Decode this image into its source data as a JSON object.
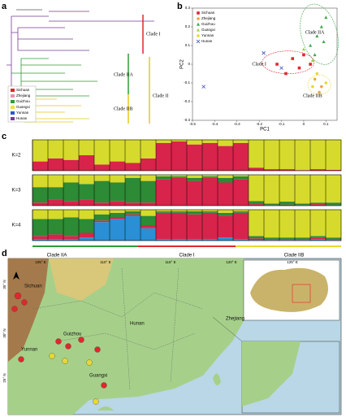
{
  "panel_labels": [
    "a",
    "b",
    "c",
    "d"
  ],
  "tree": {
    "clades": [
      "Clade I",
      "Clade IIA",
      "Clade IIB",
      "Clade II"
    ],
    "legend": [
      {
        "name": "Sichuan",
        "color": "#e3262e"
      },
      {
        "name": "Zhejiang",
        "color": "#e98fb0"
      },
      {
        "name": "Guizhou",
        "color": "#2f9b3a"
      },
      {
        "name": "Guangxi",
        "color": "#e8e24a"
      },
      {
        "name": "Yunnan",
        "color": "#3057c8"
      },
      {
        "name": "Hunan",
        "color": "#7a3b96"
      }
    ]
  },
  "map": {
    "clades": [
      "Clade IIA",
      "Clade I",
      "Clade IIB"
    ],
    "longitudes": [
      "105° E",
      "110° E",
      "115° E",
      "120° E",
      "125° E"
    ],
    "latitudes": [
      "35° N",
      "30° N",
      "25° N"
    ],
    "regions": [
      "Sichuan",
      "Guizhou",
      "Hunan",
      "Yunnan",
      "Guangxi",
      "Zhejiang"
    ]
  },
  "chart_data": [
    {
      "type": "scatter",
      "x_label": "PC1",
      "y_label": "PC2",
      "xlim": [
        -0.5,
        0.15
      ],
      "ylim": [
        -0.3,
        0.3
      ],
      "xticks": [
        -0.5,
        -0.4,
        -0.3,
        -0.2,
        -0.1,
        0,
        0.1
      ],
      "yticks": [
        -0.3,
        -0.2,
        -0.1,
        0,
        0.1,
        0.2,
        0.3
      ],
      "annotations": [
        "Clade IIA",
        "Clade I",
        "Clade IIB"
      ],
      "series": [
        {
          "name": "Sichuan",
          "color": "#e3262e",
          "marker": "square",
          "x": [
            -0.12,
            -0.05,
            -0.02,
            0.0,
            0.03,
            -0.08
          ],
          "y": [
            0.0,
            0.03,
            -0.02,
            0.05,
            0.0,
            -0.05
          ]
        },
        {
          "name": "Zhejiang",
          "color": "#f0a640",
          "marker": "circle",
          "x": [
            0.05,
            0.08,
            0.07
          ],
          "y": [
            -0.08,
            -0.12,
            -0.15
          ]
        },
        {
          "name": "Guizhou",
          "color": "#3aa548",
          "marker": "triangle",
          "x": [
            0.03,
            0.06,
            0.08,
            0.1,
            0.05,
            0.09
          ],
          "y": [
            0.1,
            0.15,
            0.2,
            0.25,
            0.05,
            0.12
          ]
        },
        {
          "name": "Guangxi",
          "color": "#9ad04a",
          "marker": "triangle",
          "x": [
            0.0,
            0.04
          ],
          "y": [
            0.08,
            0.02
          ]
        },
        {
          "name": "Yunnan",
          "color": "#e8d830",
          "marker": "circle",
          "x": [
            0.06,
            0.1,
            0.04
          ],
          "y": [
            -0.05,
            -0.1,
            -0.12
          ]
        },
        {
          "name": "Hunan",
          "color": "#3a4fc0",
          "marker": "cross",
          "x": [
            -0.45,
            -0.18,
            -0.1
          ],
          "y": [
            -0.12,
            0.06,
            -0.02
          ]
        }
      ]
    },
    {
      "type": "stacked-bar",
      "title": "K=2",
      "ylim": [
        0,
        1
      ],
      "categories": [
        null,
        null,
        null,
        null,
        null,
        null,
        null,
        null,
        null,
        null,
        null,
        null,
        null,
        null,
        null,
        null,
        null,
        null,
        null,
        null
      ],
      "series": [
        {
          "color": "#d8244a",
          "values": [
            0.3,
            0.4,
            0.35,
            0.5,
            0.2,
            0.3,
            0.25,
            0.4,
            0.9,
            0.95,
            0.85,
            0.9,
            0.8,
            0.9,
            0.1,
            0.05,
            0.05,
            0.02,
            0.05,
            0.03
          ]
        },
        {
          "color": "#d6da2c",
          "values": [
            0.7,
            0.6,
            0.65,
            0.5,
            0.8,
            0.7,
            0.75,
            0.6,
            0.1,
            0.05,
            0.15,
            0.1,
            0.2,
            0.1,
            0.9,
            0.95,
            0.95,
            0.98,
            0.95,
            0.97
          ]
        }
      ]
    },
    {
      "type": "stacked-bar",
      "title": "K=3",
      "ylim": [
        0,
        1
      ],
      "categories": [
        null,
        null,
        null,
        null,
        null,
        null,
        null,
        null,
        null,
        null,
        null,
        null,
        null,
        null,
        null,
        null,
        null,
        null,
        null,
        null
      ],
      "series": [
        {
          "color": "#d8244a",
          "values": [
            0.1,
            0.2,
            0.15,
            0.2,
            0.1,
            0.15,
            0.1,
            0.1,
            0.85,
            0.9,
            0.8,
            0.9,
            0.75,
            0.85,
            0.05,
            0.02,
            0.03,
            0.02,
            0.05,
            0.02
          ]
        },
        {
          "color": "#2d8a35",
          "values": [
            0.5,
            0.4,
            0.6,
            0.5,
            0.7,
            0.6,
            0.8,
            0.7,
            0.1,
            0.05,
            0.1,
            0.05,
            0.15,
            0.1,
            0.1,
            0.05,
            0.1,
            0.05,
            0.05,
            0.08
          ]
        },
        {
          "color": "#d6da2c",
          "values": [
            0.4,
            0.4,
            0.25,
            0.3,
            0.2,
            0.25,
            0.1,
            0.2,
            0.05,
            0.05,
            0.1,
            0.05,
            0.1,
            0.05,
            0.85,
            0.93,
            0.87,
            0.93,
            0.9,
            0.9
          ]
        }
      ]
    },
    {
      "type": "stacked-bar",
      "title": "K=4",
      "ylim": [
        0,
        1
      ],
      "categories": [
        null,
        null,
        null,
        null,
        null,
        null,
        null,
        null,
        null,
        null,
        null,
        null,
        null,
        null,
        null,
        null,
        null,
        null,
        null,
        null
      ],
      "series": [
        {
          "color": "#2a8fd4",
          "values": [
            0.05,
            0.05,
            0.05,
            0.1,
            0.6,
            0.7,
            0.8,
            0.4,
            0.05,
            0.05,
            0.05,
            0.05,
            0.1,
            0.05,
            0.02,
            0.02,
            0.02,
            0.02,
            0.05,
            0.02
          ]
        },
        {
          "color": "#d8244a",
          "values": [
            0.1,
            0.15,
            0.1,
            0.15,
            0.05,
            0.05,
            0.05,
            0.1,
            0.85,
            0.85,
            0.8,
            0.85,
            0.7,
            0.85,
            0.05,
            0.03,
            0.03,
            0.03,
            0.05,
            0.03
          ]
        },
        {
          "color": "#2d8a35",
          "values": [
            0.55,
            0.5,
            0.6,
            0.45,
            0.2,
            0.15,
            0.1,
            0.3,
            0.05,
            0.05,
            0.1,
            0.05,
            0.1,
            0.05,
            0.08,
            0.05,
            0.05,
            0.05,
            0.05,
            0.05
          ]
        },
        {
          "color": "#d6da2c",
          "values": [
            0.3,
            0.3,
            0.25,
            0.3,
            0.15,
            0.1,
            0.05,
            0.2,
            0.05,
            0.05,
            0.05,
            0.05,
            0.1,
            0.05,
            0.85,
            0.9,
            0.9,
            0.9,
            0.85,
            0.9
          ]
        }
      ]
    }
  ]
}
